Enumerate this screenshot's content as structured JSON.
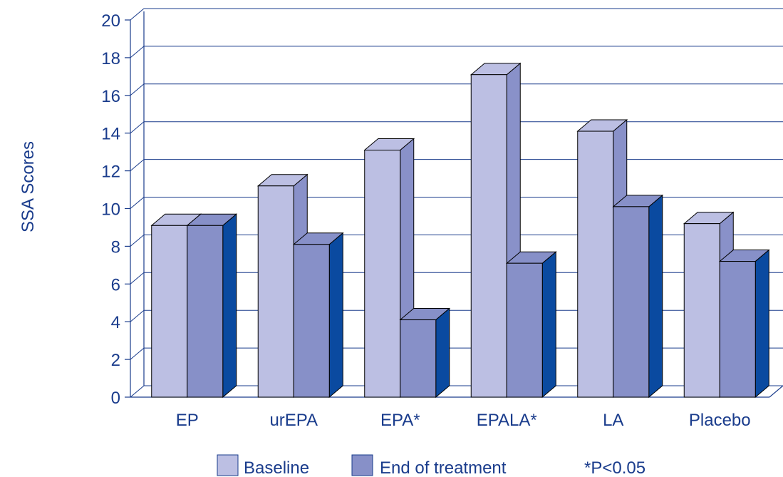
{
  "chart_data": {
    "type": "bar",
    "title": "",
    "xlabel": "",
    "ylabel": "SSA Scores",
    "ylim": [
      0,
      20
    ],
    "yticks": [
      "0",
      "2",
      "4",
      "6",
      "8",
      "10",
      "12",
      "14",
      "16",
      "18",
      "20"
    ],
    "categories": [
      "EP",
      "urEPA",
      "EPA*",
      "EPALA*",
      "LA",
      "Placebo"
    ],
    "series": [
      {
        "name": "Baseline",
        "values": [
          9.1,
          11.2,
          13.1,
          17.1,
          14.1,
          9.2
        ]
      },
      {
        "name": "End of treatment",
        "values": [
          9.1,
          8.1,
          4.1,
          7.1,
          10.1,
          7.2
        ]
      }
    ],
    "annotation": "*P<0.05",
    "grid": true,
    "legend_position": "bottom",
    "three_d": true
  },
  "colors": {
    "baseline_front": "#bcbfe3",
    "baseline_side": "#8991c9",
    "end_front": "#8790c8",
    "end_side": "#0a4aa0",
    "axis": "#1a3c8c",
    "text": "#1a3c8c"
  }
}
